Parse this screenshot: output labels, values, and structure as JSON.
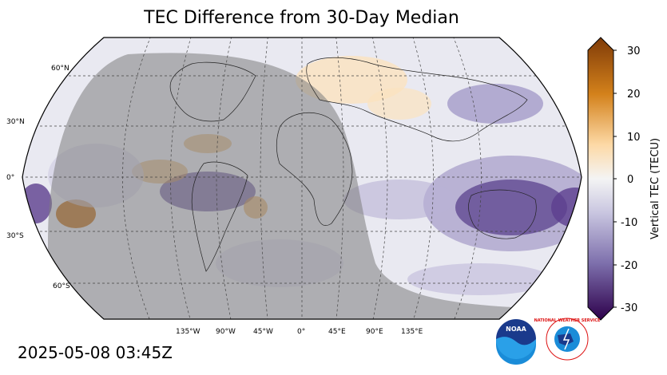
{
  "title": "TEC Difference from 30-Day Median",
  "timestamp": "2025-05-08 03:45Z",
  "colorbar": {
    "label": "Vertical TEC (TECU)",
    "ticks": [
      "30",
      "20",
      "10",
      "0",
      "-10",
      "-20",
      "-30"
    ],
    "range": [
      -30,
      30
    ]
  },
  "lat_labels": [
    "60°N",
    "30°N",
    "0°",
    "30°S",
    "60°S"
  ],
  "lon_labels": [
    "135°W",
    "90°W",
    "45°W",
    "0°",
    "45°E",
    "90°E",
    "135°E"
  ],
  "logos": {
    "noaa": "NOAA",
    "nws": "NATIONAL WEATHER SERVICE"
  },
  "colors": {
    "negative": "#3b0f5e",
    "positive": "#8a4d0f",
    "neutral": "#f3f3f3",
    "night_shade": "#9a9a9a"
  }
}
